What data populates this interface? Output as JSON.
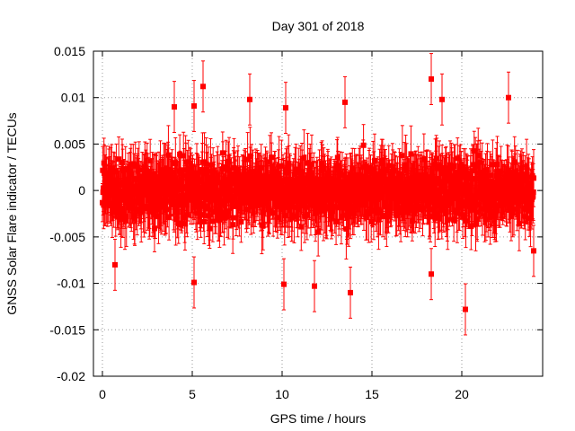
{
  "chart_data": {
    "type": "scatter",
    "title": "Day 301 of 2018",
    "xlabel": "GPS time / hours",
    "ylabel": "GNSS Solar Flare indicator / TECUs",
    "xlim": [
      -0.5,
      24.5
    ],
    "ylim": [
      -0.02,
      0.015
    ],
    "xticks": [
      0,
      5,
      10,
      15,
      20
    ],
    "xtick_labels": [
      "0",
      "5",
      "10",
      "15",
      "20"
    ],
    "yticks": [
      -0.02,
      -0.015,
      -0.01,
      -0.005,
      0,
      0.005,
      0.01,
      0.015
    ],
    "ytick_labels": [
      "-0.02",
      "-0.015",
      "-0.01",
      "-0.005",
      "0",
      "0.005",
      "0.01",
      "0.015"
    ],
    "grid": true,
    "series": [
      {
        "name": "GNSS Solar Flare indicator",
        "color": "#ff0000",
        "marker": "square",
        "error_bars": true,
        "x_range": [
          0,
          24
        ],
        "typical_spread": 0.0025,
        "typical_error": 0.0025,
        "notable_points": [
          {
            "x": 18.3,
            "y": 0.012
          },
          {
            "x": 5.6,
            "y": 0.0112
          },
          {
            "x": 22.6,
            "y": 0.01
          },
          {
            "x": 8.2,
            "y": 0.0098
          },
          {
            "x": 13.5,
            "y": 0.0095
          },
          {
            "x": 10.2,
            "y": 0.0089
          },
          {
            "x": 18.9,
            "y": 0.0098
          },
          {
            "x": 4.0,
            "y": 0.009
          },
          {
            "x": 5.1,
            "y": 0.0091
          },
          {
            "x": 20.2,
            "y": -0.0128
          },
          {
            "x": 13.8,
            "y": -0.011
          },
          {
            "x": 11.8,
            "y": -0.0103
          },
          {
            "x": 10.1,
            "y": -0.0101
          },
          {
            "x": 5.1,
            "y": -0.0099
          },
          {
            "x": 0.7,
            "y": -0.008
          },
          {
            "x": 24.0,
            "y": -0.0065
          },
          {
            "x": 18.3,
            "y": -0.009
          }
        ]
      }
    ]
  }
}
